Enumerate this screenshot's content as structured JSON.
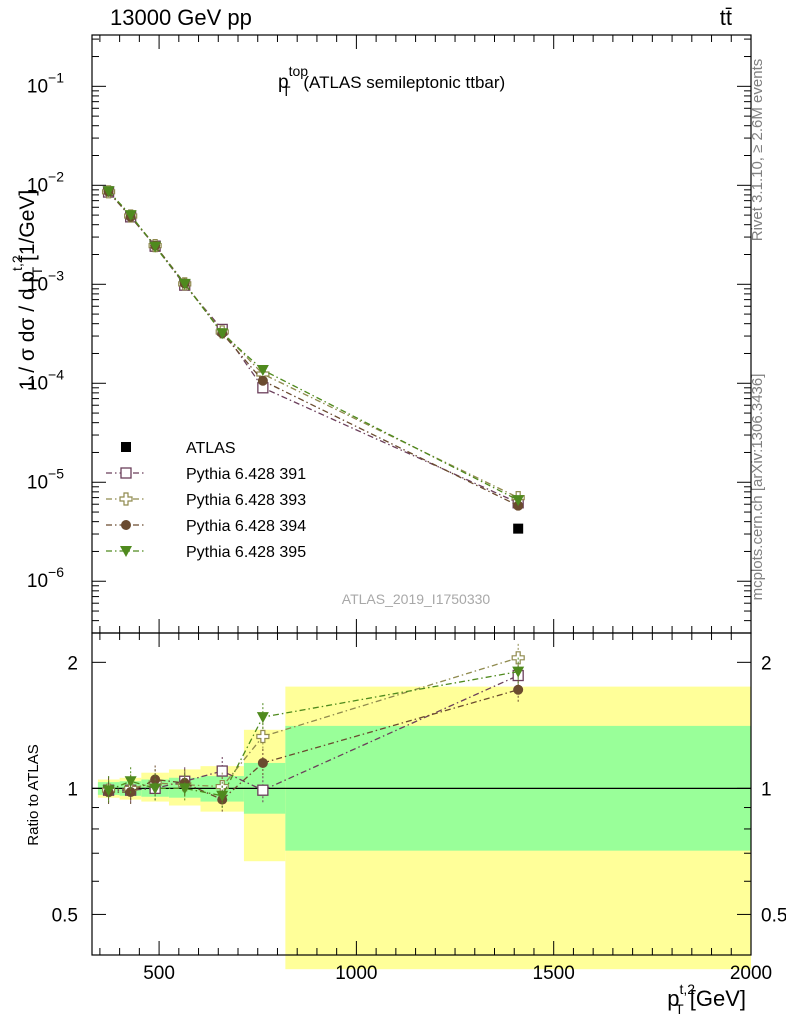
{
  "header": {
    "left": "13000 GeV pp",
    "right": "tt̄"
  },
  "side": {
    "rivet": "Rivet 3.1.10, ≥ 2.6M events",
    "mcplots": "mcplots.cern.ch [arXiv:1306.3436]"
  },
  "chart_data": [
    {
      "type": "scatter",
      "title_base": "p",
      "title_sup": "top",
      "title_sub": "T",
      "title_rest": " (ATLAS semileptonic ttbar)",
      "watermark": "ATLAS_2019_I1750330",
      "ylabel": "1 / σ dσ / d p",
      "ylabel_sup": "t,2",
      "ylabel_sub": "T",
      "ylabel_unit": " [1/GeV]",
      "yscale": "log",
      "xlim": [
        330,
        2000
      ],
      "ylim": [
        3e-07,
        0.33
      ],
      "yticks": [
        {
          "v": 1e-06,
          "base": "10",
          "exp": "−6"
        },
        {
          "v": 1e-05,
          "base": "10",
          "exp": "−5"
        },
        {
          "v": 0.0001,
          "base": "10",
          "exp": "−4"
        },
        {
          "v": 0.001,
          "base": "10",
          "exp": "−3"
        },
        {
          "v": 0.01,
          "base": "10",
          "exp": "−2"
        },
        {
          "v": 0.1,
          "base": "10",
          "exp": "−1"
        }
      ],
      "x": [
        372,
        428,
        490,
        565,
        660,
        763,
        1410
      ],
      "series": [
        {
          "name": "ATLAS",
          "marker": "square-filled",
          "color": "#000000",
          "values": [
            0.0087,
            0.0049,
            0.0024,
            0.00098,
            0.00034,
            9.2e-05,
            3.4e-06
          ]
        },
        {
          "name": "Pythia 6.428 391",
          "marker": "square-open",
          "color": "#6b3f5b",
          "values": [
            0.00855,
            0.0048,
            0.00243,
            0.00098,
            0.00035,
            9e-05,
            6.2e-06
          ]
        },
        {
          "name": "Pythia 6.428 393",
          "marker": "cross-open",
          "color": "#8f8a4e",
          "values": [
            0.0086,
            0.0049,
            0.00246,
            0.00101,
            0.00033,
            0.000124,
            7e-06
          ]
        },
        {
          "name": "Pythia 6.428 394",
          "marker": "circle-filled",
          "color": "#6a4b2f",
          "values": [
            0.0086,
            0.0048,
            0.00246,
            0.00102,
            0.00032,
            0.000106,
            5.8e-06
          ]
        },
        {
          "name": "Pythia 6.428 395",
          "marker": "triangle-down-filled",
          "color": "#4f8a1e",
          "values": [
            0.0087,
            0.005,
            0.0024,
            0.00101,
            0.00032,
            0.000136,
            6.6e-06
          ]
        }
      ]
    },
    {
      "type": "scatter",
      "ylabel": "Ratio to ATLAS",
      "xlabel": "p",
      "xlabel_sup": "t,2",
      "xlabel_sub": "T",
      "xlabel_unit": " [GeV]",
      "yscale": "log",
      "xlim": [
        330,
        2000
      ],
      "ylim": [
        0.4,
        2.35
      ],
      "xticks": [
        500,
        1000,
        1500,
        2000
      ],
      "yticks": [
        0.5,
        1,
        2
      ],
      "reference": 1,
      "bins": [
        {
          "x0": 345,
          "x1": 400,
          "inner": [
            0.965,
            1.035
          ],
          "outer": [
            0.95,
            1.05
          ]
        },
        {
          "x0": 400,
          "x1": 455,
          "inner": [
            0.96,
            1.04
          ],
          "outer": [
            0.94,
            1.06
          ]
        },
        {
          "x0": 455,
          "x1": 525,
          "inner": [
            0.955,
            1.05
          ],
          "outer": [
            0.93,
            1.09
          ]
        },
        {
          "x0": 525,
          "x1": 605,
          "inner": [
            0.95,
            1.06
          ],
          "outer": [
            0.91,
            1.11
          ]
        },
        {
          "x0": 605,
          "x1": 715,
          "inner": [
            0.93,
            1.07
          ],
          "outer": [
            0.88,
            1.13
          ]
        },
        {
          "x0": 715,
          "x1": 820,
          "inner": [
            0.87,
            1.15
          ],
          "outer": [
            0.67,
            1.38
          ]
        },
        {
          "x0": 820,
          "x1": 2000,
          "inner": [
            0.71,
            1.41
          ],
          "outer": [
            0.37,
            1.75
          ]
        }
      ],
      "x": [
        372,
        428,
        490,
        565,
        660,
        763,
        1410
      ],
      "series": [
        {
          "name": "Pythia 6.428 391",
          "values": [
            0.99,
            0.99,
            1.0,
            1.04,
            1.1,
            0.99,
            1.86
          ]
        },
        {
          "name": "Pythia 6.428 393",
          "values": [
            0.99,
            1.0,
            1.03,
            1.02,
            1.01,
            1.33,
            2.05
          ]
        },
        {
          "name": "Pythia 6.428 394",
          "values": [
            0.98,
            0.98,
            1.05,
            1.03,
            0.94,
            1.15,
            1.72
          ]
        },
        {
          "name": "Pythia 6.428 395",
          "values": [
            0.99,
            1.04,
            1.0,
            1.0,
            0.96,
            1.48,
            1.9
          ]
        }
      ]
    }
  ]
}
